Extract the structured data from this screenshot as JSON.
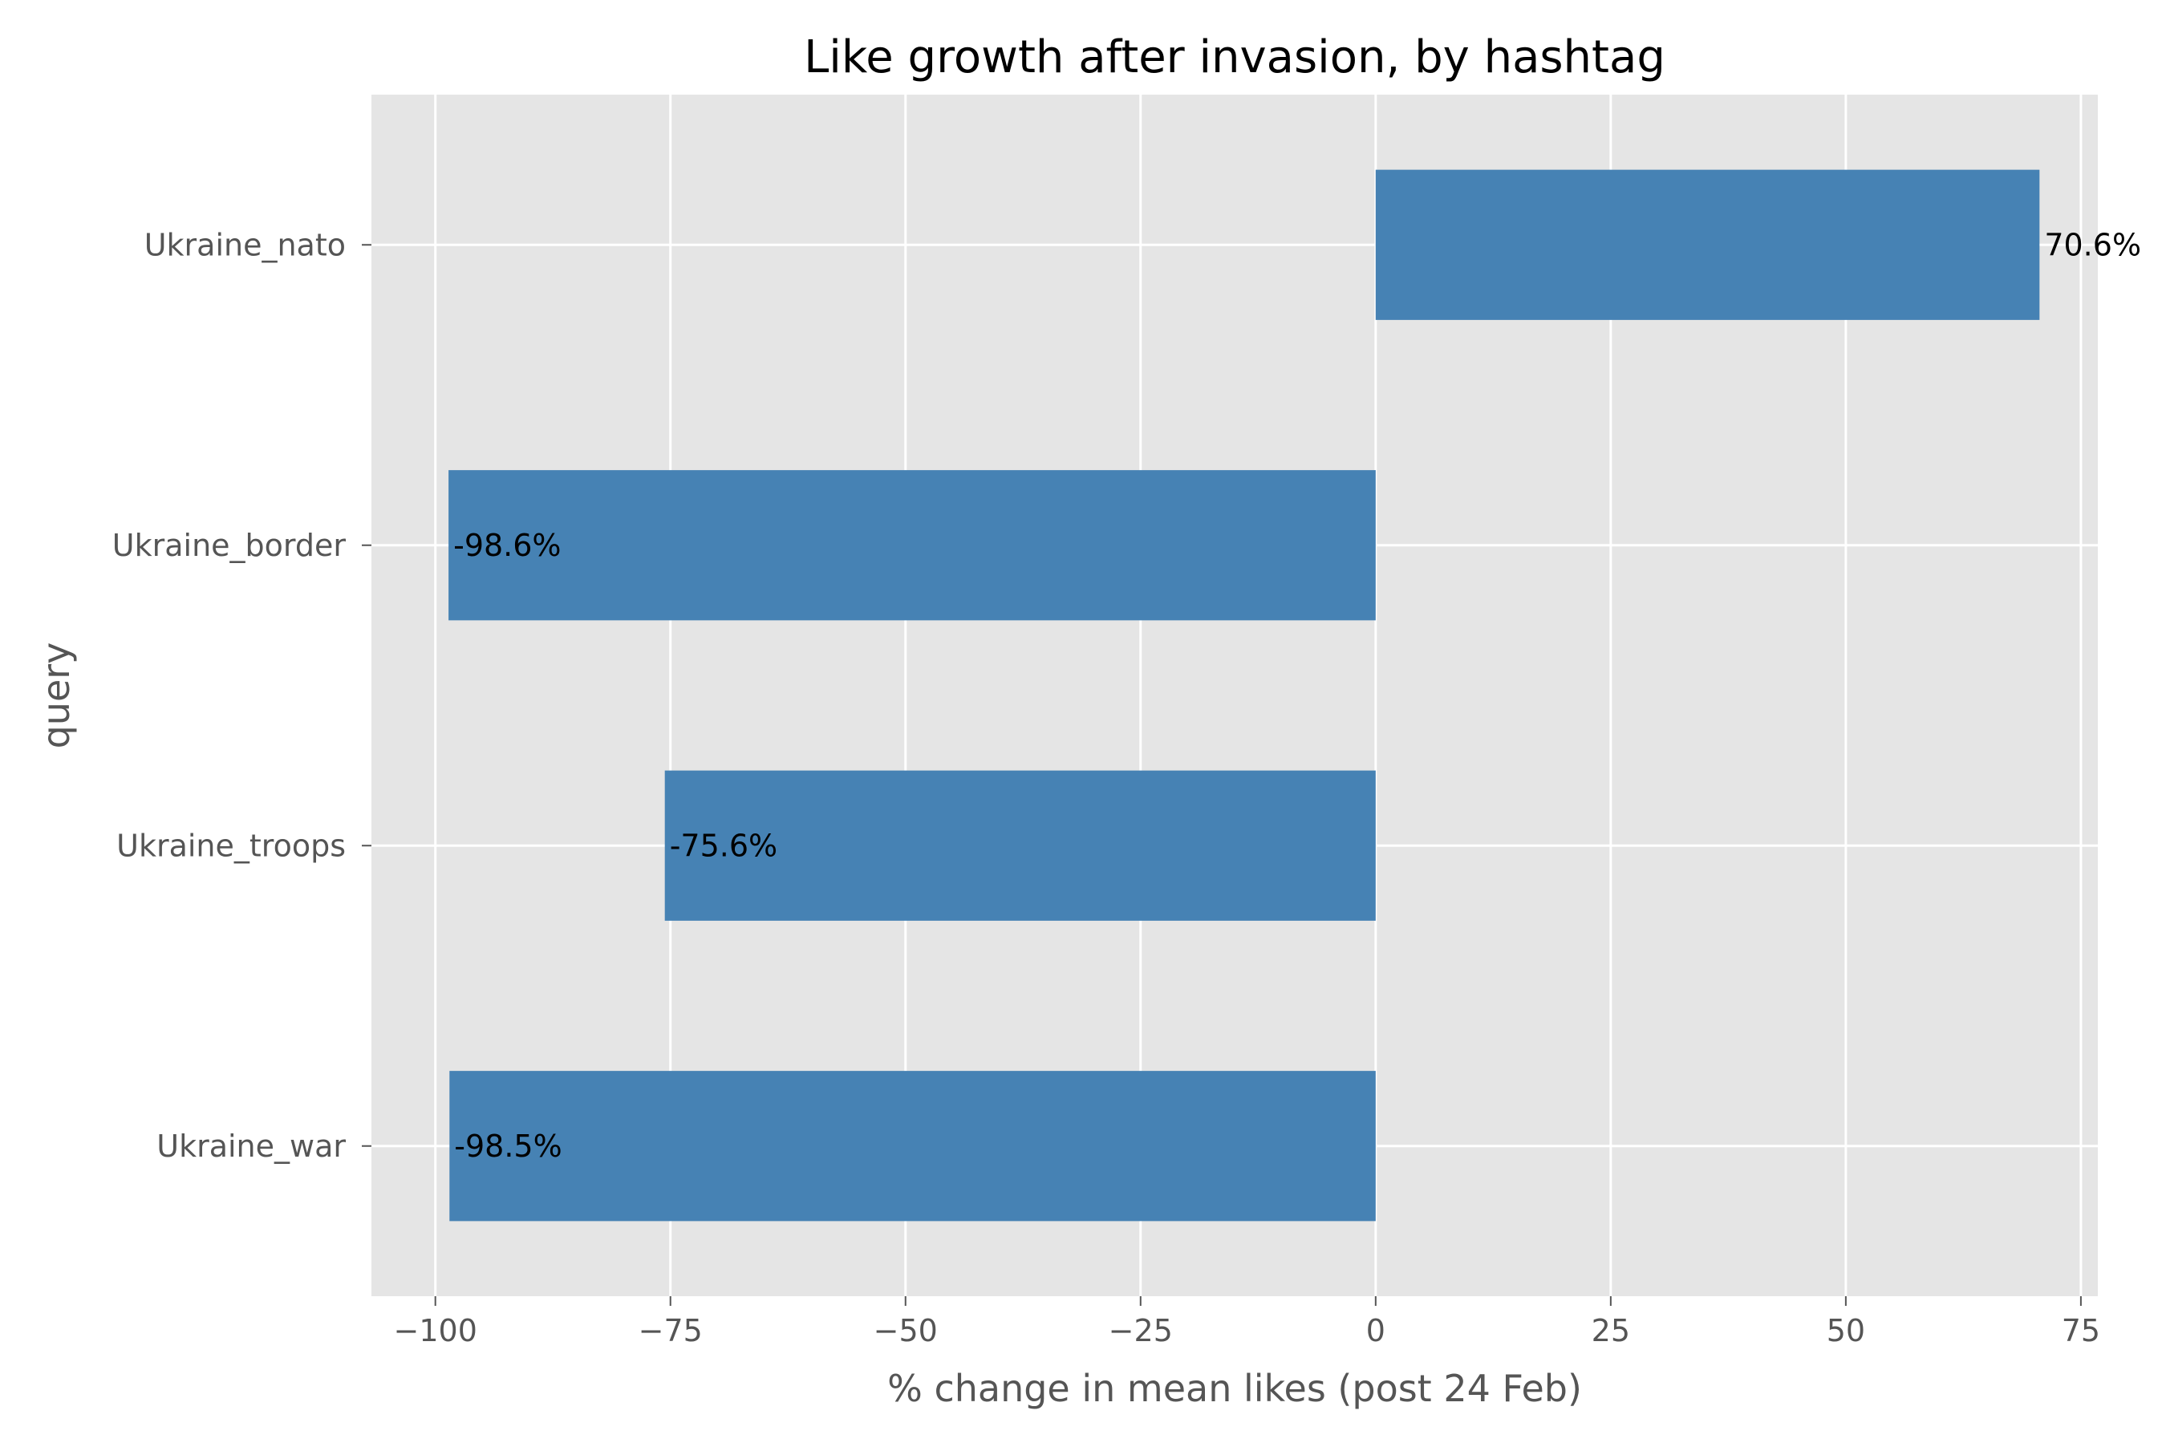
{
  "chart_data": {
    "type": "bar",
    "orientation": "horizontal",
    "title": "Like growth after invasion, by hashtag",
    "xlabel": "% change in mean likes (post 24 Feb)",
    "ylabel": "query",
    "categories": [
      "Ukraine_nato",
      "Ukraine_border",
      "Ukraine_troops",
      "Ukraine_war"
    ],
    "values": [
      70.6,
      -98.6,
      -75.6,
      -98.5
    ],
    "value_labels": [
      "70.6%",
      "-98.6%",
      "-75.6%",
      "-98.5%"
    ],
    "xlim": [
      -106.8,
      76.8
    ],
    "xticks": [
      -100,
      -75,
      -50,
      -25,
      0,
      25,
      50,
      75
    ],
    "xtick_labels": [
      "−100",
      "−75",
      "−50",
      "−25",
      "0",
      "25",
      "50",
      "75"
    ],
    "grid": true,
    "colors": {
      "bar": "#4682b4",
      "plot_background": "#e5e5e5",
      "grid": "#ffffff",
      "tick_text": "#555555"
    }
  }
}
